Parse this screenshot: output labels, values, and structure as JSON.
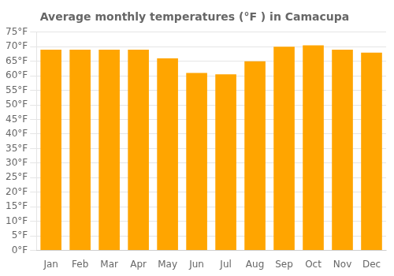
{
  "chart_data": {
    "type": "bar",
    "title": "Average monthly temperatures (°F ) in Camacupa",
    "categories": [
      "Jan",
      "Feb",
      "Mar",
      "Apr",
      "May",
      "Jun",
      "Jul",
      "Aug",
      "Sep",
      "Oct",
      "Nov",
      "Dec"
    ],
    "values": [
      69,
      69,
      69,
      69,
      66,
      61,
      60.5,
      65,
      70,
      70.5,
      69,
      68
    ],
    "color": "#FFA500",
    "ylim": [
      0,
      75
    ],
    "yticks": [
      {
        "value": 0,
        "label": "0°F"
      },
      {
        "value": 5,
        "label": "5°F"
      },
      {
        "value": 10,
        "label": "10°F"
      },
      {
        "value": 15,
        "label": "15°F"
      },
      {
        "value": 20,
        "label": "20°F"
      },
      {
        "value": 25,
        "label": "25°F"
      },
      {
        "value": 30,
        "label": "30°F"
      },
      {
        "value": 35,
        "label": "35°F"
      },
      {
        "value": 40,
        "label": "40°F"
      },
      {
        "value": 45,
        "label": "45°F"
      },
      {
        "value": 50,
        "label": "50°F"
      },
      {
        "value": 55,
        "label": "55°F"
      },
      {
        "value": 60,
        "label": "60°F"
      },
      {
        "value": 65,
        "label": "65°F"
      },
      {
        "value": 70,
        "label": "70°F"
      },
      {
        "value": 75,
        "label": "75°F"
      }
    ],
    "grid": true
  }
}
